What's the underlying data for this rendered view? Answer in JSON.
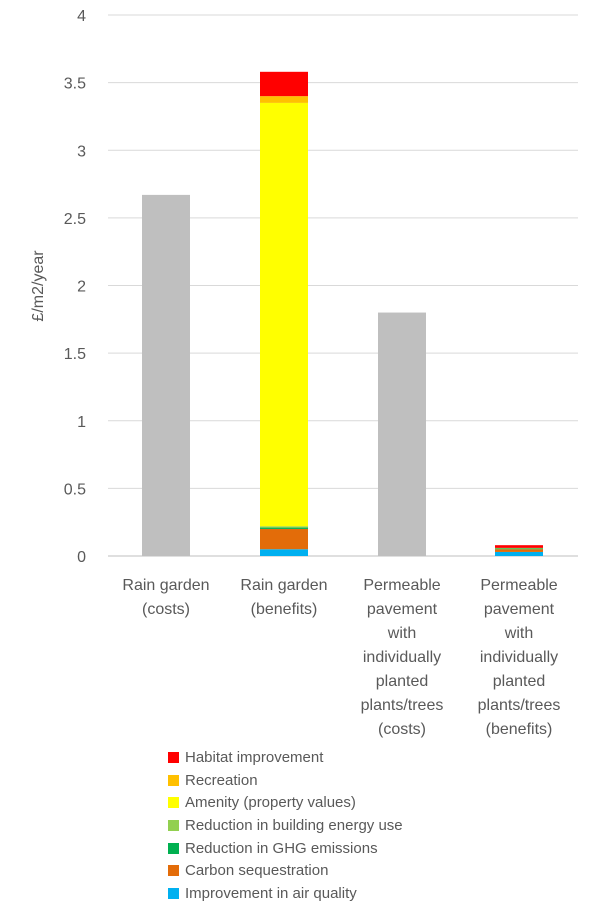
{
  "chart_data": {
    "type": "bar",
    "stacked": true,
    "ylabel": "£/m2/year",
    "xlabel": "",
    "ylim": [
      0,
      4
    ],
    "yticks": [
      "0",
      "0.5",
      "1",
      "1.5",
      "2",
      "2.5",
      "3",
      "3.5",
      "4"
    ],
    "grid": true,
    "legend_position": "bottom-left",
    "categories": [
      [
        "Rain garden",
        "(costs)"
      ],
      [
        "Rain garden",
        "(benefits)"
      ],
      [
        "Permeable",
        "pavement",
        "with",
        "individually",
        "planted",
        "plants/trees",
        "(costs)"
      ],
      [
        "Permeable",
        "pavement",
        "with",
        "individually",
        "planted",
        "plants/trees",
        "(benefits)"
      ]
    ],
    "series": [
      {
        "name": "Costs",
        "color": "#bfbfbf",
        "in_legend": false,
        "values": [
          2.67,
          0,
          1.8,
          0
        ]
      },
      {
        "name": "Improvement in air quality",
        "color": "#00b0f0",
        "in_legend": true,
        "values": [
          0,
          0.05,
          0,
          0.03
        ]
      },
      {
        "name": "Carbon sequestration",
        "color": "#e36c09",
        "in_legend": true,
        "values": [
          0,
          0.15,
          0,
          0.02
        ]
      },
      {
        "name": "Reduction in GHG emissions",
        "color": "#00b050",
        "in_legend": true,
        "values": [
          0,
          0.01,
          0,
          0.005
        ]
      },
      {
        "name": "Reduction in building energy use",
        "color": "#92d050",
        "in_legend": true,
        "values": [
          0,
          0.01,
          0,
          0.005
        ]
      },
      {
        "name": "Amenity (property values)",
        "color": "#ffff00",
        "in_legend": true,
        "values": [
          0,
          3.13,
          0,
          0
        ]
      },
      {
        "name": "Recreation",
        "color": "#ffc000",
        "in_legend": true,
        "values": [
          0,
          0.05,
          0,
          0
        ]
      },
      {
        "name": "Habitat improvement",
        "color": "#ff0000",
        "in_legend": true,
        "values": [
          0,
          0.18,
          0,
          0.02
        ]
      }
    ],
    "legend_order": [
      "Habitat improvement",
      "Recreation",
      "Amenity (property values)",
      "Reduction in building energy use",
      "Reduction in GHG emissions",
      "Carbon sequestration",
      "Improvement in air quality"
    ]
  }
}
